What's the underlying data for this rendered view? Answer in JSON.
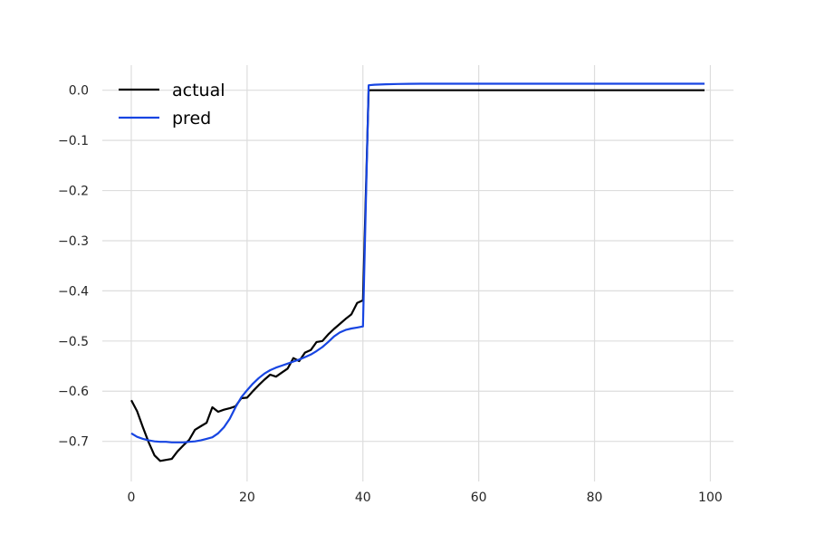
{
  "chart_data": {
    "type": "line",
    "title": "",
    "xlabel": "",
    "ylabel": "",
    "xlim": [
      -5,
      104
    ],
    "ylim": [
      -0.78,
      0.05
    ],
    "grid": true,
    "legend_position": "top-left",
    "x_ticks": [
      0,
      20,
      40,
      60,
      80,
      100
    ],
    "x_tick_labels": [
      "0",
      "20",
      "40",
      "60",
      "80",
      "100"
    ],
    "y_ticks": [
      0.0,
      -0.1,
      -0.2,
      -0.3,
      -0.4,
      -0.5,
      -0.6,
      -0.7
    ],
    "y_tick_labels": [
      "0.0",
      "−0.1",
      "−0.2",
      "−0.3",
      "−0.4",
      "−0.5",
      "−0.6",
      "−0.7"
    ],
    "series": [
      {
        "name": "actual",
        "color": "#000000",
        "x": [
          0,
          1,
          2,
          3,
          4,
          5,
          6,
          7,
          8,
          9,
          10,
          11,
          12,
          13,
          14,
          15,
          16,
          17,
          18,
          19,
          20,
          21,
          22,
          23,
          24,
          25,
          26,
          27,
          28,
          29,
          30,
          31,
          32,
          33,
          34,
          35,
          36,
          37,
          38,
          39,
          40,
          41,
          50,
          60,
          70,
          80,
          90,
          99
        ],
        "y": [
          -0.618,
          -0.64,
          -0.672,
          -0.702,
          -0.728,
          -0.739,
          -0.737,
          -0.735,
          -0.72,
          -0.708,
          -0.697,
          -0.677,
          -0.67,
          -0.663,
          -0.632,
          -0.641,
          -0.637,
          -0.634,
          -0.63,
          -0.614,
          -0.613,
          -0.6,
          -0.588,
          -0.577,
          -0.567,
          -0.571,
          -0.563,
          -0.555,
          -0.534,
          -0.54,
          -0.523,
          -0.518,
          -0.502,
          -0.5,
          -0.487,
          -0.476,
          -0.466,
          -0.456,
          -0.447,
          -0.424,
          -0.419,
          0.0,
          0.0,
          0.0,
          0.0,
          0.0,
          0.0,
          0.0
        ]
      },
      {
        "name": "pred",
        "color": "#1745e2",
        "x": [
          0,
          1,
          2,
          3,
          4,
          5,
          6,
          7,
          8,
          9,
          10,
          11,
          12,
          13,
          14,
          15,
          16,
          17,
          18,
          19,
          20,
          21,
          22,
          23,
          24,
          25,
          26,
          27,
          28,
          29,
          30,
          31,
          32,
          33,
          34,
          35,
          36,
          37,
          38,
          39,
          40,
          41,
          42,
          44,
          46,
          48,
          50,
          55,
          60,
          70,
          80,
          90,
          99
        ],
        "y": [
          -0.684,
          -0.691,
          -0.695,
          -0.698,
          -0.7,
          -0.701,
          -0.701,
          -0.702,
          -0.702,
          -0.702,
          -0.701,
          -0.7,
          -0.698,
          -0.695,
          -0.692,
          -0.684,
          -0.672,
          -0.655,
          -0.632,
          -0.612,
          -0.598,
          -0.585,
          -0.574,
          -0.565,
          -0.558,
          -0.553,
          -0.549,
          -0.545,
          -0.541,
          -0.537,
          -0.532,
          -0.527,
          -0.52,
          -0.512,
          -0.502,
          -0.491,
          -0.483,
          -0.478,
          -0.475,
          -0.473,
          -0.471,
          0.01,
          0.011,
          0.012,
          0.0125,
          0.0128,
          0.013,
          0.013,
          0.013,
          0.013,
          0.013,
          0.013,
          0.013
        ]
      }
    ]
  }
}
